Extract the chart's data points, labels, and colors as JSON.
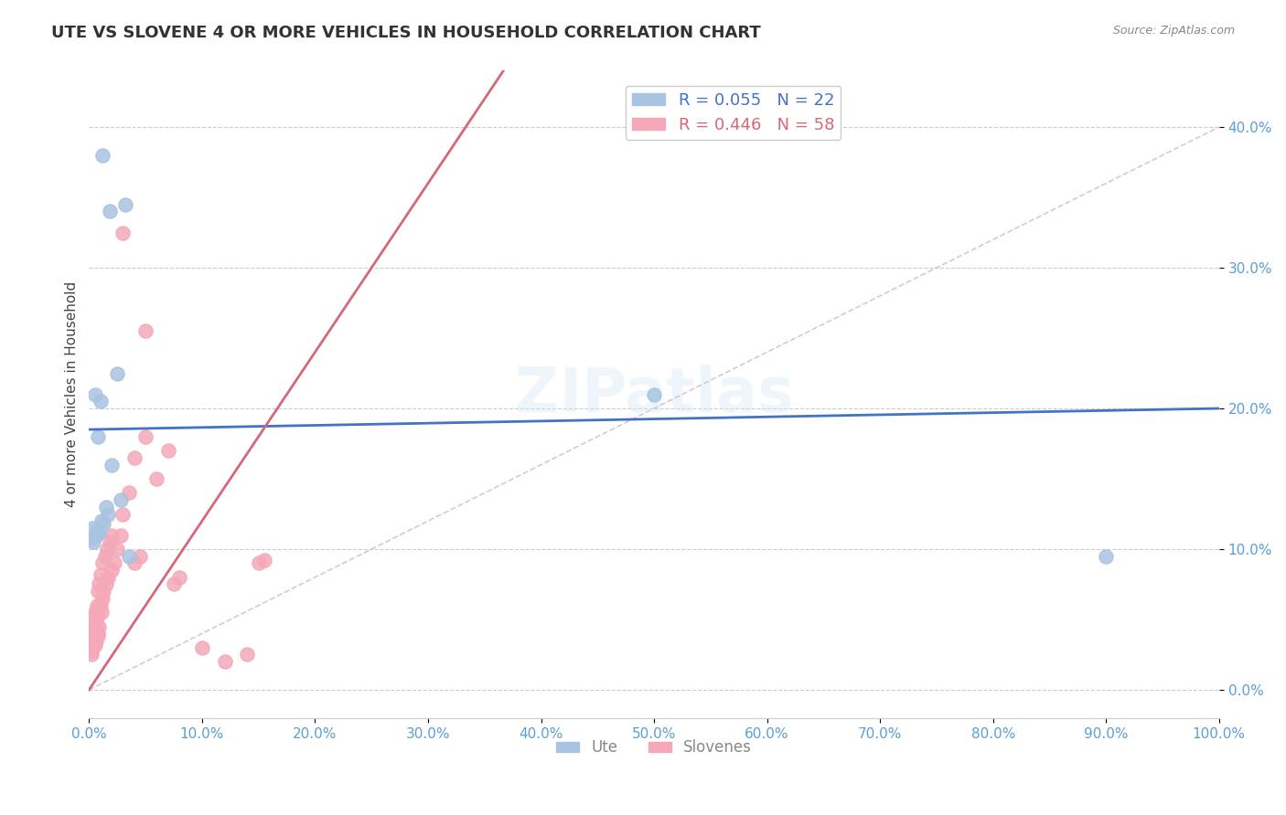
{
  "title": "UTE VS SLOVENE 4 OR MORE VEHICLES IN HOUSEHOLD CORRELATION CHART",
  "source": "Source: ZipAtlas.com",
  "xlabel": "",
  "ylabel": "4 or more Vehicles in Household",
  "legend_label_1": "Ute",
  "legend_label_2": "Slovenes",
  "R1": 0.055,
  "N1": 22,
  "R2": 0.446,
  "N2": 58,
  "xlim": [
    0.0,
    100.0
  ],
  "ylim": [
    -2.0,
    44.0
  ],
  "xticks": [
    0.0,
    10.0,
    20.0,
    30.0,
    40.0,
    50.0,
    60.0,
    70.0,
    80.0,
    90.0,
    100.0
  ],
  "yticks": [
    0.0,
    10.0,
    20.0,
    30.0,
    40.0
  ],
  "color_ute": "#a8c4e0",
  "color_slovene": "#f4a8b8",
  "color_ute_line": "#4472c4",
  "color_slovene_line": "#d4687a",
  "color_diagonal": "#d4b8c8",
  "watermark": "ZIPatlas",
  "ute_x": [
    1.2,
    1.8,
    3.2,
    0.5,
    1.0,
    2.5,
    1.5,
    2.0,
    0.8,
    0.3,
    1.1,
    2.8,
    0.4,
    0.6,
    0.9,
    1.3,
    3.5,
    50.0,
    1.7,
    90.0,
    0.2,
    0.7
  ],
  "ute_y": [
    38.0,
    34.0,
    34.5,
    21.0,
    20.5,
    22.5,
    13.0,
    16.0,
    18.0,
    11.5,
    12.0,
    13.5,
    10.5,
    11.0,
    11.2,
    11.8,
    9.5,
    21.0,
    12.5,
    9.5,
    10.8,
    11.3
  ],
  "slovene_x": [
    0.1,
    0.15,
    0.2,
    0.25,
    0.3,
    0.35,
    0.4,
    0.45,
    0.5,
    0.55,
    0.6,
    0.65,
    0.7,
    0.75,
    0.8,
    0.85,
    0.9,
    1.0,
    1.1,
    1.2,
    1.3,
    1.5,
    1.7,
    2.0,
    2.2,
    2.5,
    2.8,
    3.0,
    3.5,
    4.0,
    4.5,
    5.0,
    6.0,
    7.0,
    7.5,
    8.0,
    10.0,
    12.0,
    14.0,
    15.0,
    15.5,
    0.2,
    0.3,
    0.4,
    0.5,
    0.6,
    0.7,
    0.8,
    0.9,
    1.0,
    1.2,
    1.4,
    1.6,
    1.8,
    2.0,
    3.0,
    4.0,
    5.0
  ],
  "slovene_y": [
    3.5,
    4.0,
    2.5,
    3.0,
    3.8,
    4.2,
    5.0,
    4.5,
    3.2,
    5.5,
    4.8,
    3.5,
    5.2,
    4.0,
    3.8,
    4.5,
    5.8,
    6.0,
    5.5,
    6.5,
    7.0,
    7.5,
    8.0,
    8.5,
    9.0,
    10.0,
    11.0,
    12.5,
    14.0,
    9.0,
    9.5,
    25.5,
    15.0,
    17.0,
    7.5,
    8.0,
    3.0,
    2.0,
    2.5,
    9.0,
    9.2,
    2.8,
    3.2,
    4.0,
    4.8,
    5.5,
    6.0,
    7.0,
    7.5,
    8.2,
    9.0,
    9.5,
    10.0,
    10.5,
    11.0,
    32.5,
    16.5,
    18.0
  ]
}
